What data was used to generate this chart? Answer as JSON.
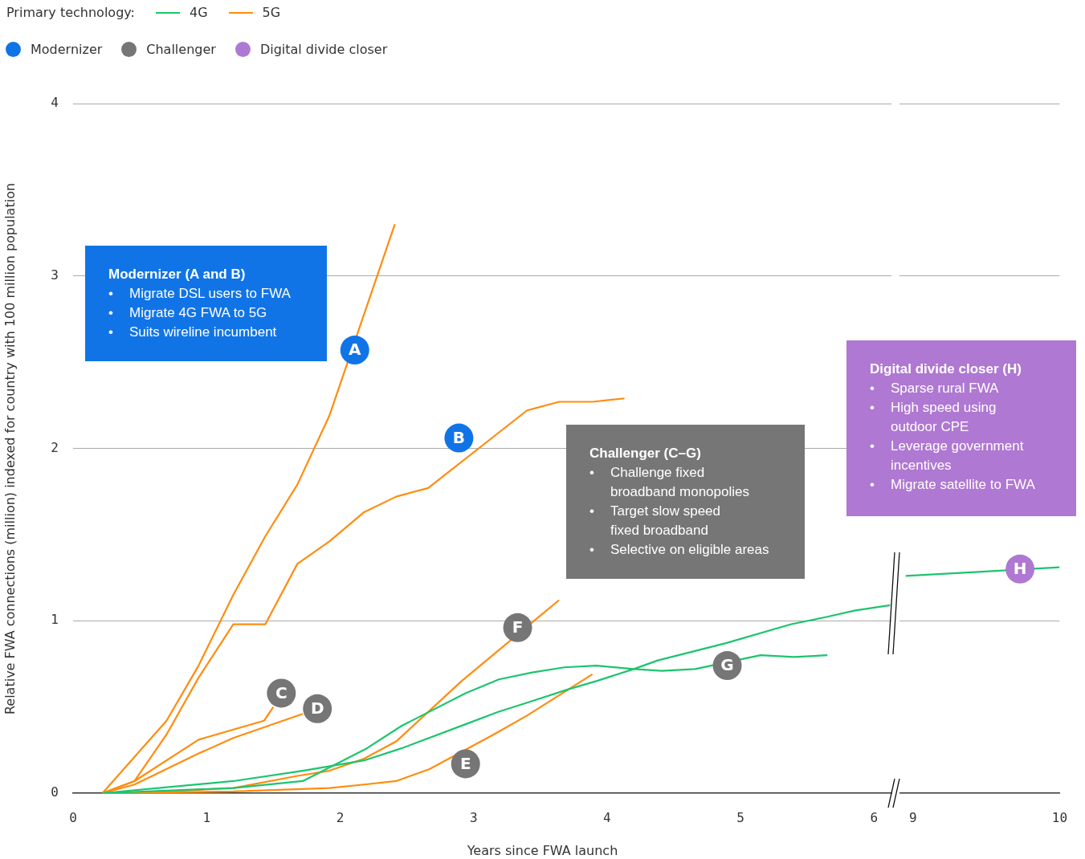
{
  "chart_data": [
    {
      "type": "line",
      "xlabel": "Years since FWA launch",
      "ylabel": "Relative FWA connections (million) indexed for country with 100 million population",
      "legend_title": "Primary technology:",
      "legend": "top left",
      "grid": "y",
      "marker": "none",
      "xlim": [
        0,
        6.13
      ],
      "xticks": [
        0,
        1,
        2,
        3,
        4,
        5,
        6
      ],
      "ylim": [
        0,
        4
      ],
      "yticks": [
        0,
        1,
        2,
        3,
        4
      ],
      "series": [
        {
          "name": "4G",
          "color": "#1dc46e",
          "x": [
            0.22,
            1.2,
            1.72,
            2.2,
            2.46,
            2.94,
            3.19,
            3.44,
            3.68,
            3.92,
            4.2,
            4.41,
            4.66,
            5.15,
            5.4,
            5.65
          ],
          "values": [
            0,
            0.03,
            0.07,
            0.26,
            0.39,
            0.58,
            0.66,
            0.7,
            0.73,
            0.74,
            0.72,
            0.71,
            0.72,
            0.8,
            0.79,
            0.8
          ]
        },
        {
          "color": "#1dc46e",
          "x": [
            0.22,
            1.2,
            1.72,
            1.95,
            2.18,
            2.46,
            2.94,
            3.18,
            3.42,
            3.7,
            3.92,
            4.2,
            4.38,
            4.89,
            5.38,
            5.63,
            5.86,
            6.12
          ],
          "values": [
            0,
            0.07,
            0.13,
            0.16,
            0.19,
            0.26,
            0.4,
            0.47,
            0.53,
            0.6,
            0.65,
            0.72,
            0.77,
            0.87,
            0.98,
            1.02,
            1.06,
            1.09
          ]
        },
        {
          "name": "5G",
          "color": "#ff8c0f",
          "x": [
            0.22,
            0.7,
            0.94,
            1.2,
            1.44,
            1.68,
            1.92,
            2.41
          ],
          "values": [
            0,
            0.42,
            0.74,
            1.15,
            1.49,
            1.79,
            2.19,
            3.3
          ]
        },
        {
          "color": "#ff8c0f",
          "x": [
            0.22,
            0.46,
            0.7,
            0.94,
            1.2,
            1.44,
            1.68,
            1.92,
            2.18,
            2.42,
            2.66,
            3.4,
            3.64,
            3.89,
            4.13
          ],
          "values": [
            0,
            0.07,
            0.34,
            0.67,
            0.98,
            0.98,
            1.33,
            1.46,
            1.63,
            1.72,
            1.77,
            2.22,
            2.27,
            2.27,
            2.29
          ]
        },
        {
          "color": "#ff8c0f",
          "x": [
            0.22,
            0.46,
            0.94,
            1.43,
            1.5
          ],
          "values": [
            0,
            0.07,
            0.31,
            0.42,
            0.5
          ]
        },
        {
          "color": "#ff8c0f",
          "x": [
            0.22,
            0.46,
            0.94,
            1.2,
            1.72
          ],
          "values": [
            0,
            0.05,
            0.23,
            0.32,
            0.46
          ]
        },
        {
          "color": "#ff8c0f",
          "x": [
            0.22,
            1.2,
            1.92,
            2.18,
            2.42,
            2.67,
            3.15,
            3.4,
            3.89
          ],
          "values": [
            0,
            0.01,
            0.03,
            0.05,
            0.07,
            0.14,
            0.34,
            0.45,
            0.69
          ]
        },
        {
          "color": "#ff8c0f",
          "x": [
            0.22,
            0.7,
            1.2,
            1.68,
            1.92,
            2.18,
            2.42,
            2.91,
            3.64
          ],
          "values": [
            0,
            0.01,
            0.03,
            0.1,
            0.13,
            0.2,
            0.3,
            0.65,
            1.12
          ]
        }
      ],
      "annotations": [
        "Modernizer",
        "Challenger",
        "Digital divide closer",
        "Modernizer (A and B)\n• Migrate DSL users to FWA\n• Migrate 4G FWA to 5G\n• Suits wireline incumbent",
        "Challenger (C–G)\n• Challenge fixed\nbroadband monopolies\n• Target slow speed\nfixed broadband\n• Selective on eligible areas",
        "Digital divide closer (H)\n• Sparse rural FWA\n• High speed using\noutdoor CPE\n• Leverage government\nincentives\n• Migrate satellite to FWA",
        {
          "text": "A",
          "x": 2.11,
          "y": 2.57
        },
        {
          "text": "B",
          "x": 2.89,
          "y": 2.06
        },
        {
          "text": "C",
          "x": 1.56,
          "y": 0.58
        },
        {
          "text": "D",
          "x": 1.83,
          "y": 0.49
        },
        {
          "text": "E",
          "x": 2.94,
          "y": 0.17
        },
        {
          "text": "F",
          "x": 3.33,
          "y": 0.96
        },
        {
          "text": "G",
          "x": 4.9,
          "y": 0.74
        }
      ]
    },
    {
      "type": "line",
      "grid": "y",
      "marker": "none",
      "tick_labels": "x",
      "xlim": [
        8.91,
        10
      ],
      "xticks": [
        9,
        10
      ],
      "ylim": [
        0,
        4
      ],
      "yticks": [
        0,
        1,
        2,
        3,
        4
      ],
      "series": [
        {
          "color": "#1dc46e",
          "x": [
            8.95,
            10
          ],
          "values": [
            1.26,
            1.31
          ]
        }
      ],
      "annotations": [
        {
          "text": "H",
          "x": 9.73,
          "y": 1.3
        }
      ]
    }
  ]
}
